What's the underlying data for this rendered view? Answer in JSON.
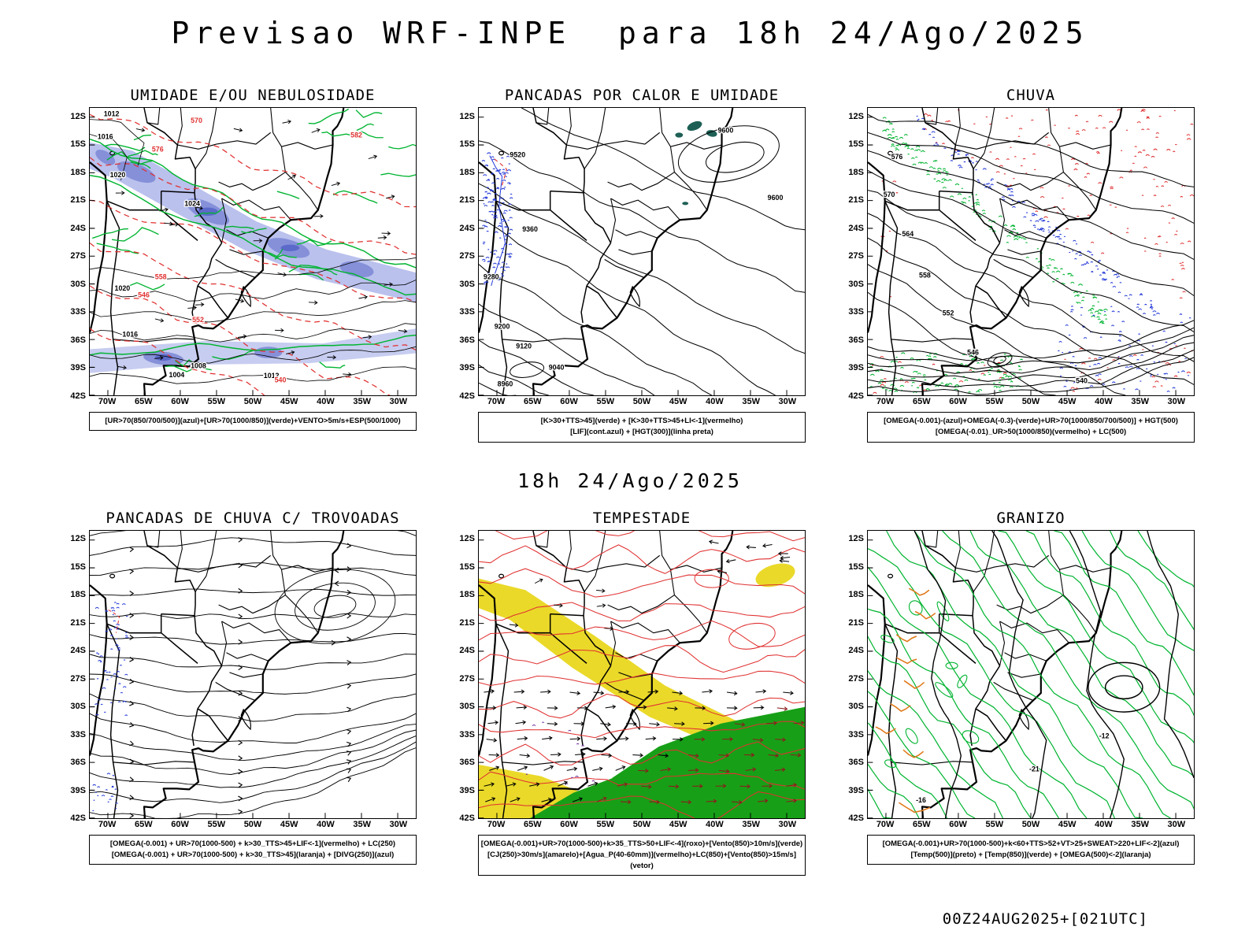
{
  "title": "Previsao WRF-INPE  para 18h 24/Ago/2025",
  "valid_time": "18h 24/Ago/2025",
  "run_info": "00Z24AUG2025+[021UTC]",
  "axes": {
    "lat": [
      "12S",
      "15S",
      "18S",
      "21S",
      "24S",
      "27S",
      "30S",
      "33S",
      "36S",
      "39S",
      "42S"
    ],
    "lon": [
      "70W",
      "65W",
      "60W",
      "55W",
      "50W",
      "45W",
      "40W",
      "35W",
      "30W"
    ]
  },
  "colors": {
    "green": "#00b430",
    "red": "#e03030",
    "blue": "#2238d8",
    "yellow": "#ead929",
    "dark_teal": "#1d5f55",
    "shade_blue": "#a9b2e8",
    "shade_purple": "#7f8bd6",
    "orange": "#e07818",
    "purple": "#7030a0",
    "dark_red": "#8b1c1c",
    "dark_green": "#17a017"
  },
  "panels": [
    {
      "title": "UMIDADE E/OU NEBULOSIDADE",
      "caption": [
        "[UR>70(850/700/500)](azul)+[UR>70(1000/850)](verde)+VENTO>5m/s+ESP(500/1000)"
      ],
      "contour_labels": [
        "1012",
        "1016",
        "1020",
        "1024",
        "1020",
        "1016",
        "1008",
        "1004",
        "1012",
        "570",
        "576",
        "582",
        "558",
        "552",
        "546",
        "540"
      ]
    },
    {
      "title": "PANCADAS POR CALOR E UMIDADE",
      "caption": [
        "[K>30+TTS>45](verde) + [K>30+TTS>45+LI<-1](vermelho)",
        "[LIF](cont.azul) + [HGT(300)](linha preta)"
      ],
      "contour_labels": [
        "9600",
        "9520",
        "9360",
        "9280",
        "9200",
        "9120",
        "9600",
        "9040",
        "8960"
      ]
    },
    {
      "title": "CHUVA",
      "caption": [
        "[OMEGA(-0.001)-(azul)+OMEGA(-0.3)-(verde)+UR>70(1000/850/700/500)] + HGT(500)",
        "[OMEGA(-0.01)_UR>50(1000/850)(vermelho) + LC(500)"
      ],
      "contour_labels": [
        "576",
        "570",
        "564",
        "558",
        "552",
        "546",
        "540"
      ]
    },
    {
      "title": "PANCADAS DE CHUVA C/ TROVOADAS",
      "caption": [
        "[OMEGA(-0.001) + UR>70(1000-500) + k>30_TTS>45+LIF<-1](vermelho) + LC(250)",
        "[OMEGA(-0.001) + UR>70(1000-500) + k>30_TTS>45](laranja) + [DIVG(250)](azul)"
      ],
      "contour_labels": []
    },
    {
      "title": "TEMPESTADE",
      "caption": [
        "[OMEGA(-0.001)+UR>70(1000-500)+k>35_TTS>50+LIF<-4](roxo)+[Vento(850)>10m/s](verde)",
        "[CJ(250)>30m/s](amarelo)+[Agua_P(40-60mm)](vermelho)+LC(850)+[Vento(850)>15m/s](vetor)"
      ],
      "contour_labels": []
    },
    {
      "title": "GRANIZO",
      "caption": [
        "[OMEGA(-0.001)+UR>70(1000-500)+k<60+TTS>52+VT>25+SWEAT>220+LIF<-2](azul)",
        "[Temp(500)](preto) + [Temp(850)](verde) + [OMEGA(500)<-2](laranja)"
      ],
      "contour_labels": [
        "-12",
        "-16",
        "-21"
      ]
    }
  ]
}
